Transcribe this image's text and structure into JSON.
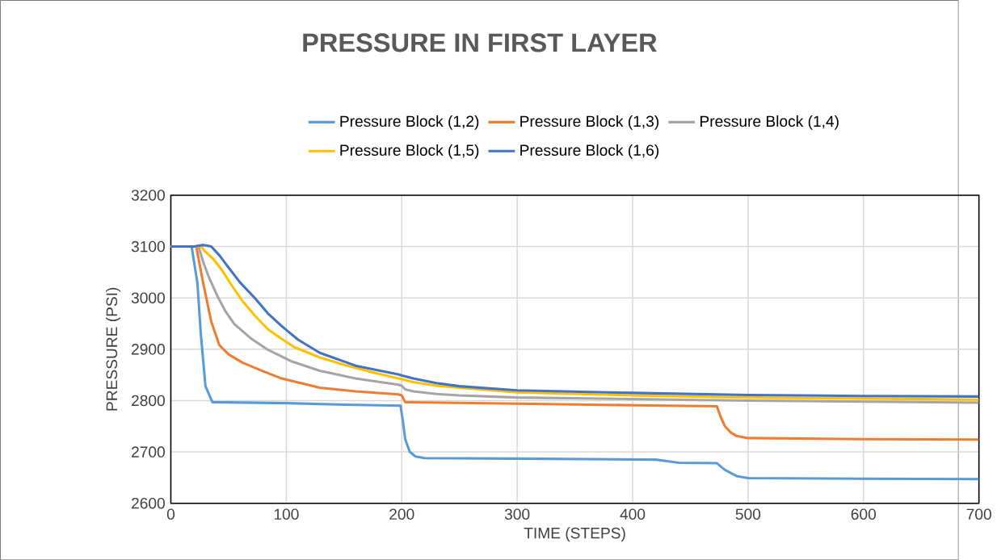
{
  "chart_data": {
    "type": "line",
    "title": "PRESSURE IN FIRST LAYER",
    "xlabel": "TIME (STEPS)",
    "ylabel": "PRESSURE (PSI)",
    "xlim": [
      0,
      700
    ],
    "xticks": [
      0,
      100,
      200,
      300,
      400,
      500,
      600,
      700
    ],
    "ylim": [
      2600,
      3200
    ],
    "yticks": [
      2600,
      2700,
      2800,
      2900,
      3000,
      3100,
      3200
    ],
    "grid": true,
    "legend": "top",
    "marker": "none",
    "line_style": "solid",
    "series": [
      {
        "name": "Pressure Block (1,2)",
        "color": "#5b9bd5",
        "x": [
          0,
          18,
          23,
          26,
          30,
          36,
          100,
          150,
          199,
          201,
          203,
          207,
          212,
          220,
          300,
          420,
          430,
          440,
          473,
          480,
          490,
          500,
          600,
          700
        ],
        "values": [
          3100,
          3100,
          3029,
          2929,
          2828,
          2797,
          2795,
          2792,
          2790,
          2760,
          2725,
          2700,
          2691,
          2688,
          2687,
          2685,
          2682,
          2679,
          2678,
          2665,
          2653,
          2649,
          2648,
          2647
        ]
      },
      {
        "name": "Pressure Block (1,3)",
        "color": "#ed7d31",
        "x": [
          0,
          22,
          28,
          35,
          42,
          50,
          62,
          80,
          96,
          129,
          160,
          197,
          200,
          203,
          300,
          400,
          473,
          476,
          480,
          485,
          490,
          500,
          600,
          700
        ],
        "values": [
          3100,
          3100,
          3029,
          2954,
          2908,
          2890,
          2874,
          2857,
          2843,
          2825,
          2818,
          2812,
          2810,
          2797,
          2794,
          2791,
          2789,
          2770,
          2750,
          2738,
          2731,
          2727,
          2725,
          2724
        ]
      },
      {
        "name": "Pressure Block (1,4)",
        "color": "#a5a5a5",
        "x": [
          0,
          24,
          28,
          33,
          40,
          47,
          55,
          70,
          84,
          105,
          129,
          160,
          197,
          200,
          203,
          210,
          230,
          250,
          300,
          400,
          500,
          600,
          700
        ],
        "values": [
          3100,
          3100,
          3070,
          3040,
          3005,
          2975,
          2949,
          2920,
          2899,
          2876,
          2858,
          2843,
          2831,
          2829,
          2822,
          2818,
          2813,
          2810,
          2806,
          2803,
          2800,
          2798,
          2796
        ]
      },
      {
        "name": "Pressure Block (1,5)",
        "color": "#ffc000",
        "x": [
          0,
          26,
          30,
          37,
          44,
          52,
          62,
          73,
          84,
          96,
          107,
          129,
          151,
          175,
          197,
          200,
          210,
          230,
          250,
          300,
          400,
          500,
          600,
          700
        ],
        "values": [
          3100,
          3100,
          3090,
          3075,
          3055,
          3027,
          2994,
          2965,
          2939,
          2920,
          2904,
          2884,
          2869,
          2855,
          2843,
          2842,
          2836,
          2829,
          2825,
          2816,
          2810,
          2806,
          2804,
          2802
        ]
      },
      {
        "name": "Pressure Block (1,6)",
        "color": "#4472c4",
        "x": [
          0,
          20,
          27,
          31,
          35,
          42,
          50,
          60,
          73,
          84,
          96,
          110,
          129,
          160,
          197,
          200,
          210,
          230,
          250,
          300,
          400,
          500,
          600,
          700
        ],
        "values": [
          3100,
          3100,
          3103,
          3102,
          3100,
          3083,
          3059,
          3030,
          2999,
          2970,
          2945,
          2919,
          2893,
          2868,
          2851,
          2849,
          2843,
          2834,
          2828,
          2820,
          2815,
          2811,
          2809,
          2808
        ]
      }
    ]
  }
}
